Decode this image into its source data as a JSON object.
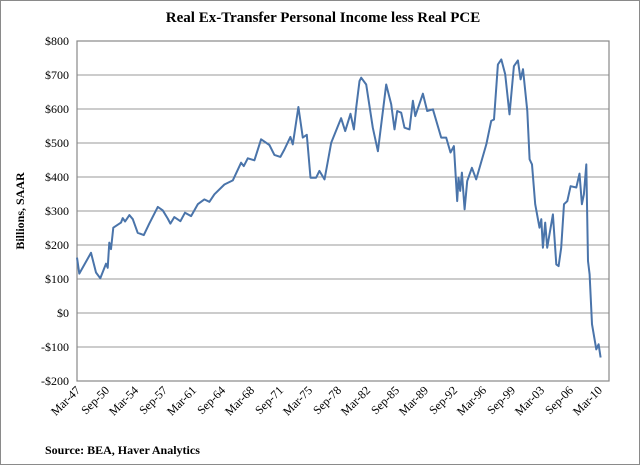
{
  "chart_data": {
    "type": "line",
    "title": "Real Ex-Transfer Personal Income less Real PCE",
    "ylabel": "Billions, SAAR",
    "xlabel": "",
    "source": "Source:  BEA, Haver Analytics",
    "ylim": [
      -200,
      800
    ],
    "yticks": [
      -200,
      -100,
      0,
      100,
      200,
      300,
      400,
      500,
      600,
      700,
      800
    ],
    "ytick_labels": [
      "-$200",
      "-$100",
      "$0",
      "$100",
      "$200",
      "$300",
      "$400",
      "$500",
      "$600",
      "$700",
      "$800"
    ],
    "xlim": [
      1947.0,
      2010.25
    ],
    "xtick_labels": [
      "Mar-47",
      "Sep-50",
      "Mar-54",
      "Sep-57",
      "Mar-61",
      "Sep-64",
      "Mar-68",
      "Sep-71",
      "Mar-75",
      "Sep-78",
      "Mar-82",
      "Sep-85",
      "Mar-89",
      "Sep-92",
      "Mar-96",
      "Sep-99",
      "Mar-03",
      "Sep-06",
      "Mar-10"
    ],
    "xtick_step_years": 3.5,
    "grid": true,
    "line_color": "#4a74aa",
    "series": [
      {
        "name": "Real Ex-Transfer Personal Income less Real PCE",
        "points": [
          [
            1947.0,
            163
          ],
          [
            1947.28,
            116
          ],
          [
            1948.69,
            177
          ],
          [
            1949.29,
            119
          ],
          [
            1949.81,
            102
          ],
          [
            1950.5,
            145
          ],
          [
            1950.71,
            133
          ],
          [
            1950.9,
            207
          ],
          [
            1951.11,
            188
          ],
          [
            1951.38,
            251
          ],
          [
            1952.31,
            266
          ],
          [
            1952.52,
            279
          ],
          [
            1952.8,
            269
          ],
          [
            1953.32,
            288
          ],
          [
            1953.73,
            276
          ],
          [
            1954.33,
            236
          ],
          [
            1955.06,
            229
          ],
          [
            1955.73,
            263
          ],
          [
            1956.75,
            312
          ],
          [
            1957.35,
            302
          ],
          [
            1957.95,
            278
          ],
          [
            1958.27,
            263
          ],
          [
            1958.75,
            282
          ],
          [
            1959.48,
            270
          ],
          [
            1960.04,
            295
          ],
          [
            1960.77,
            285
          ],
          [
            1961.58,
            320
          ],
          [
            1962.37,
            334
          ],
          [
            1962.98,
            327
          ],
          [
            1963.58,
            349
          ],
          [
            1964.79,
            378
          ],
          [
            1965.8,
            390
          ],
          [
            1966.81,
            442
          ],
          [
            1967.13,
            432
          ],
          [
            1967.62,
            455
          ],
          [
            1968.41,
            449
          ],
          [
            1969.22,
            511
          ],
          [
            1970.22,
            494
          ],
          [
            1970.83,
            465
          ],
          [
            1971.55,
            459
          ],
          [
            1972.04,
            481
          ],
          [
            1972.76,
            518
          ],
          [
            1973.05,
            496
          ],
          [
            1973.73,
            606
          ],
          [
            1974.26,
            516
          ],
          [
            1974.74,
            524
          ],
          [
            1975.18,
            398
          ],
          [
            1975.86,
            398
          ],
          [
            1976.26,
            418
          ],
          [
            1976.87,
            393
          ],
          [
            1977.28,
            447
          ],
          [
            1977.68,
            501
          ],
          [
            1978.88,
            573
          ],
          [
            1979.37,
            535
          ],
          [
            1980.01,
            586
          ],
          [
            1980.42,
            540
          ],
          [
            1980.7,
            604
          ],
          [
            1981.1,
            682
          ],
          [
            1981.3,
            692
          ],
          [
            1981.91,
            672
          ],
          [
            1982.71,
            545
          ],
          [
            1983.32,
            476
          ],
          [
            1984.32,
            672
          ],
          [
            1984.92,
            614
          ],
          [
            1985.32,
            540
          ],
          [
            1985.65,
            594
          ],
          [
            1986.13,
            589
          ],
          [
            1986.53,
            545
          ],
          [
            1987.13,
            540
          ],
          [
            1987.54,
            624
          ],
          [
            1987.83,
            579
          ],
          [
            1988.75,
            645
          ],
          [
            1989.27,
            594
          ],
          [
            1989.96,
            599
          ],
          [
            1990.96,
            516
          ],
          [
            1991.56,
            516
          ],
          [
            1992.08,
            472
          ],
          [
            1992.5,
            491
          ],
          [
            1992.89,
            329
          ],
          [
            1993.05,
            398
          ],
          [
            1993.26,
            359
          ],
          [
            1993.46,
            413
          ],
          [
            1993.78,
            305
          ],
          [
            1994.1,
            388
          ],
          [
            1994.67,
            427
          ],
          [
            1995.19,
            393
          ],
          [
            1996.4,
            496
          ],
          [
            1997.0,
            565
          ],
          [
            1997.33,
            569
          ],
          [
            1997.81,
            731
          ],
          [
            1998.21,
            746
          ],
          [
            1998.69,
            702
          ],
          [
            1999.21,
            584
          ],
          [
            1999.74,
            726
          ],
          [
            2000.22,
            743
          ],
          [
            2000.54,
            687
          ],
          [
            2000.83,
            717
          ],
          [
            2001.35,
            594
          ],
          [
            2001.63,
            452
          ],
          [
            2001.92,
            437
          ],
          [
            2002.31,
            320
          ],
          [
            2002.83,
            251
          ],
          [
            2003.04,
            276
          ],
          [
            2003.24,
            192
          ],
          [
            2003.52,
            266
          ],
          [
            2003.76,
            192
          ],
          [
            2004.45,
            290
          ],
          [
            2004.85,
            143
          ],
          [
            2005.13,
            138
          ],
          [
            2005.45,
            192
          ],
          [
            2005.78,
            320
          ],
          [
            2006.18,
            329
          ],
          [
            2006.58,
            373
          ],
          [
            2007.27,
            369
          ],
          [
            2007.66,
            410
          ],
          [
            2007.95,
            320
          ],
          [
            2008.19,
            349
          ],
          [
            2008.47,
            437
          ],
          [
            2008.68,
            153
          ],
          [
            2008.87,
            114
          ],
          [
            2009.16,
            -33
          ],
          [
            2009.68,
            -107
          ],
          [
            2009.96,
            -92
          ],
          [
            2010.2,
            -131
          ]
        ]
      }
    ]
  }
}
